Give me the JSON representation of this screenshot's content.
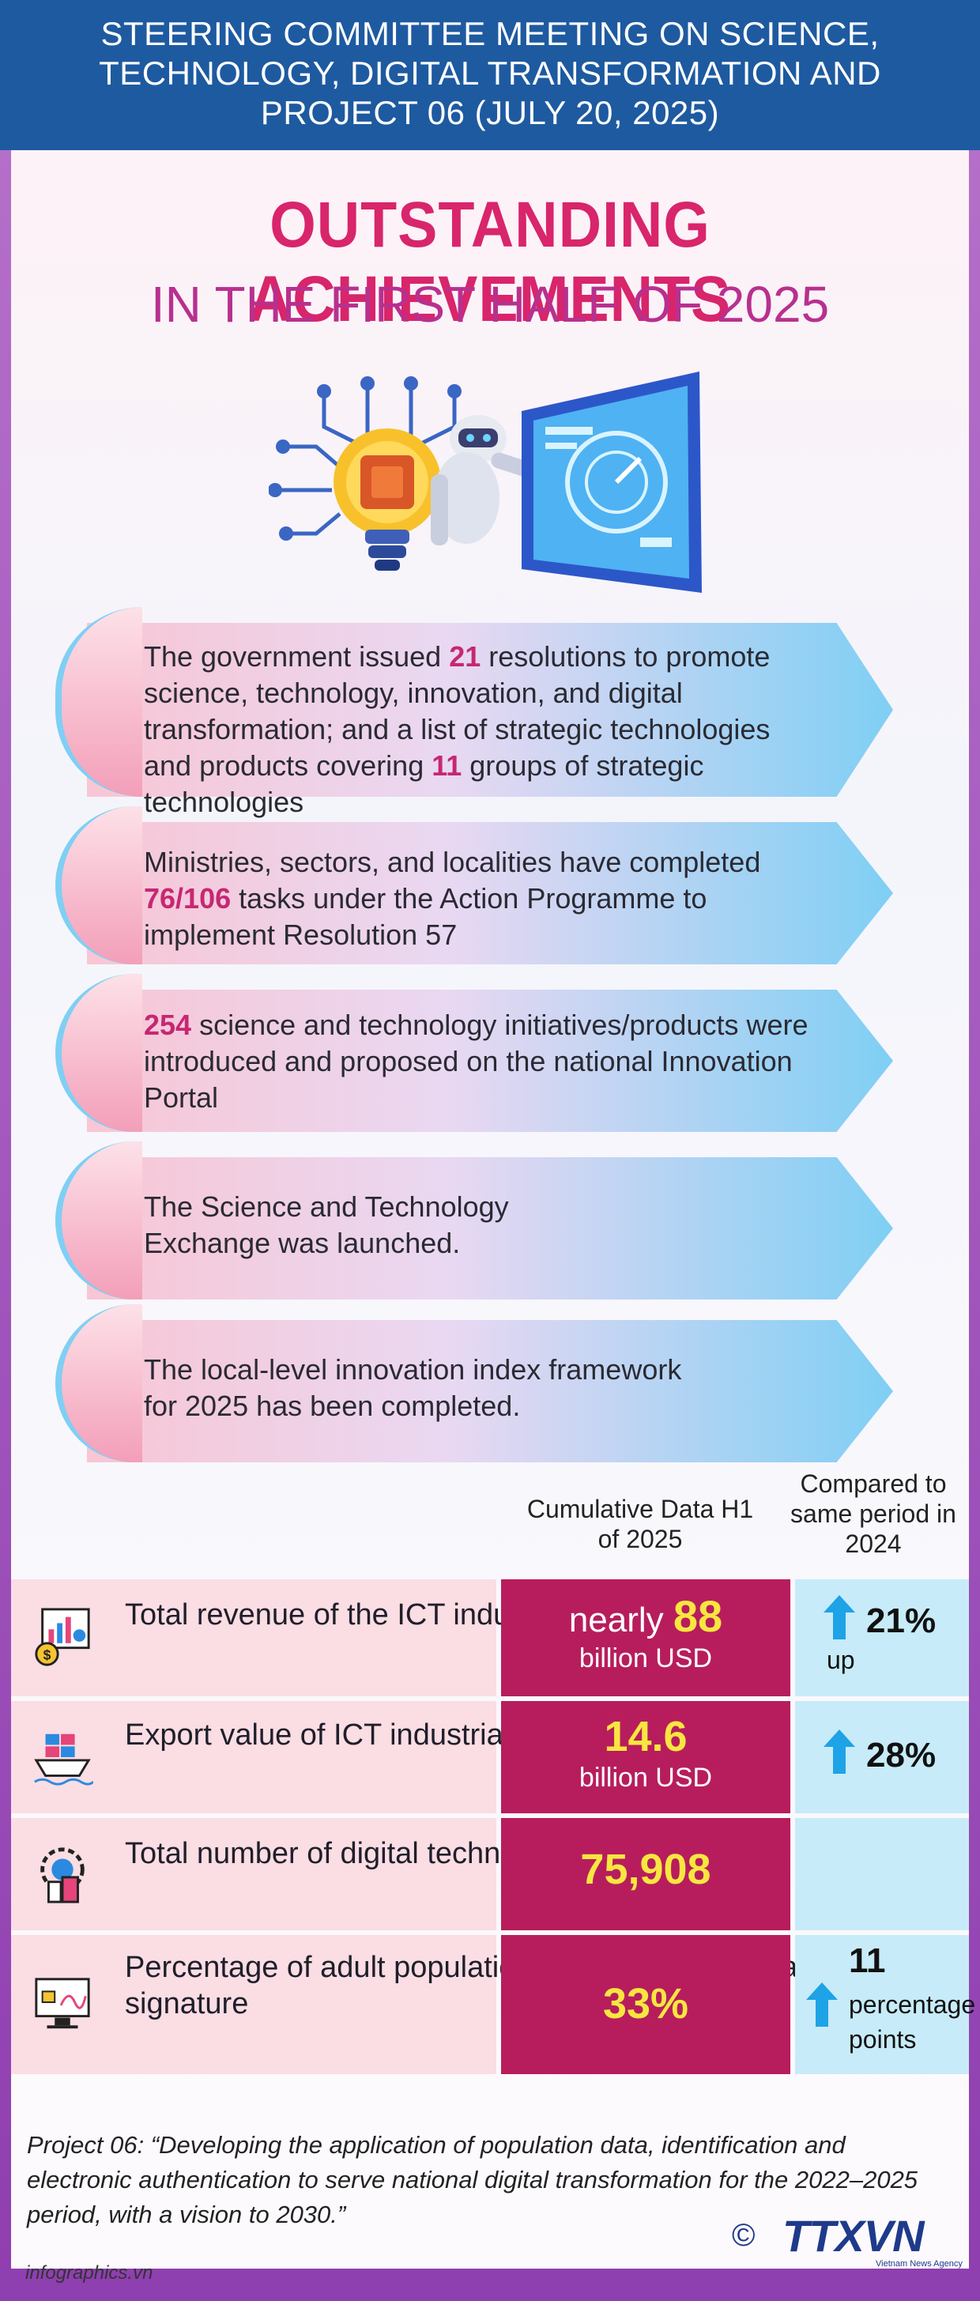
{
  "header": {
    "line1": "STEERING COMMITTEE MEETING ON SCIENCE,",
    "line2": "TECHNOLOGY, DIGITAL TRANSFORMATION AND",
    "line3": "PROJECT 06 (JULY 20, 2025)"
  },
  "title": {
    "main": "OUTSTANDING ACHIEVEMENTS",
    "sub": "IN THE FIRST HALF OF 2025"
  },
  "achievements": [
    {
      "pre": "The government issued ",
      "n1": "21",
      "mid": " resolutions to promote science, technology, innovation, and digital transformation; and a list of strategic technologies and products covering ",
      "n2": "11",
      "post": " groups of strategic technologies"
    },
    {
      "pre": "Ministries, sectors, and localities have completed ",
      "n1": "76/106",
      "post": " tasks under the Action Programme to implement Resolution 57"
    },
    {
      "n1": "254",
      "post": " science and technology initiatives/products were introduced and proposed on the national Innovation Portal"
    },
    {
      "text": "The Science and Technology Exchange was launched."
    },
    {
      "text": "The local-level innovation index framework for 2025 has been completed."
    }
  ],
  "columns": {
    "cumulative": "Cumulative Data H1 of 2025",
    "compared": "Compared to same period in 2024"
  },
  "stats": [
    {
      "label": "Total revenue of the ICT industry",
      "prefix": "nearly",
      "value": "88",
      "unit": "billion USD",
      "change": "21%",
      "change_note": "up",
      "icon": "revenue-chart-icon"
    },
    {
      "label": "Export value of ICT industrial products",
      "prefix": "",
      "value": "14.6",
      "unit": "billion USD",
      "change": "28%",
      "change_note": "",
      "icon": "cargo-ship-icon"
    },
    {
      "label": "Total number of digital technology enterprises",
      "prefix": "",
      "value": "75,908",
      "unit": "",
      "change": "",
      "change_note": "",
      "icon": "enterprise-gear-icon"
    },
    {
      "label": "Percentage of adult population with personal digital/electronic signature",
      "prefix": "",
      "value": "33%",
      "unit": "",
      "change": "11",
      "change_note": "percentage points",
      "icon": "digital-signature-icon"
    }
  ],
  "footer": {
    "note": "Project 06: “Developing the application of population data, identification and electronic authentication to serve national digital transformation for the 2022–2025 period, with a vision to 2030.”",
    "site": "infographics.vn",
    "logo": "TTXVN",
    "logo_sub": "Vietnam News Agency",
    "copyright": "©"
  },
  "colors": {
    "header": "#1e5aa0",
    "accent": "#d8256b",
    "value_bg": "#b71d5c",
    "highlight": "#f7e640",
    "arrow": "#1ea3e6"
  }
}
